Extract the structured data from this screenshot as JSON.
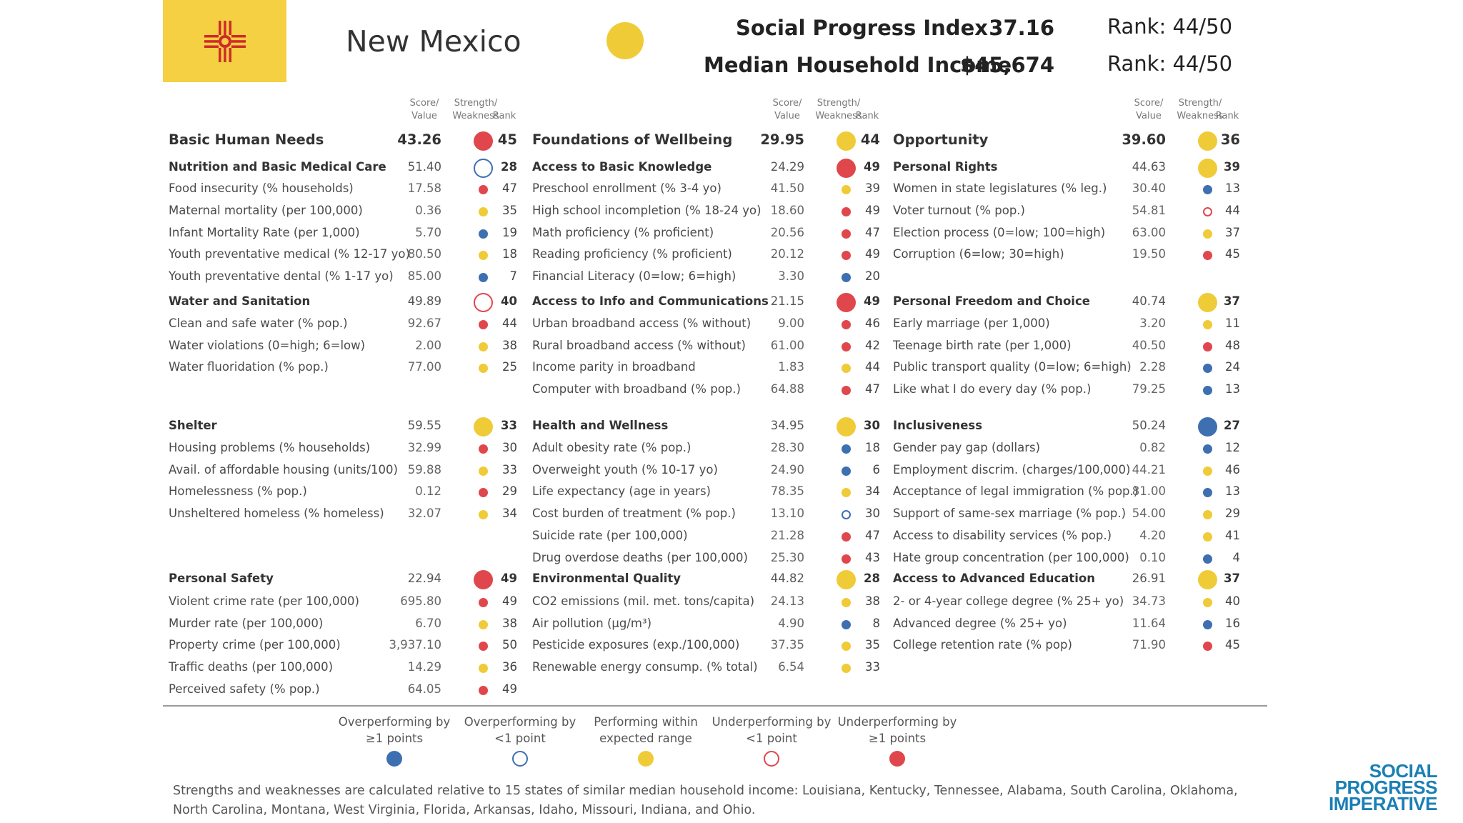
{
  "header": {
    "state": "New Mexico",
    "spi_label": "Social Progress Index",
    "spi_value": "37.16",
    "spi_rank": "Rank: 44/50",
    "income_label": "Median Household Income",
    "income_value": "$45,674",
    "income_rank": "Rank: 44/50"
  },
  "colors": {
    "flag_bg": "#f5d042",
    "flag_symbol": "#cf2a2a",
    "over_strong": "#3e6fb0",
    "over_weak": "#3e6fb0",
    "expected": "#f0cb38",
    "under_weak": "#e0474c",
    "under_strong": "#e0474c"
  },
  "column_headers": {
    "score": "Score/\nValue",
    "strength": "Strength/\nWeakness",
    "rank": "Rank"
  },
  "columns": [
    {
      "rows": [
        {
          "t": "cat",
          "label": "Basic Human Needs",
          "value": "43.26",
          "dot": "under_strong",
          "rank": "45"
        },
        {
          "t": "comp",
          "label": "Nutrition and Basic Medical Care",
          "value": "51.40",
          "dot": "over_weak",
          "rank": "28"
        },
        {
          "t": "ind",
          "label": "Food insecurity (% households)",
          "value": "17.58",
          "dot": "under_strong",
          "rank": "47"
        },
        {
          "t": "ind",
          "label": "Maternal mortality (per 100,000)",
          "value": "0.36",
          "dot": "expected",
          "rank": "35"
        },
        {
          "t": "ind",
          "label": "Infant Mortality Rate (per 1,000)",
          "value": "5.70",
          "dot": "over_strong",
          "rank": "19"
        },
        {
          "t": "ind",
          "label": "Youth preventative medical (% 12-17 yo)",
          "value": "80.50",
          "dot": "expected",
          "rank": "18"
        },
        {
          "t": "ind",
          "label": "Youth preventative dental (% 1-17 yo)",
          "value": "85.00",
          "dot": "over_strong",
          "rank": "7"
        },
        {
          "t": "comp",
          "label": "Water and Sanitation",
          "value": "49.89",
          "dot": "under_weak",
          "rank": "40"
        },
        {
          "t": "ind",
          "label": "Clean and safe water (% pop.)",
          "value": "92.67",
          "dot": "under_strong",
          "rank": "44"
        },
        {
          "t": "ind",
          "label": "Water violations (0=high; 6=low)",
          "value": "2.00",
          "dot": "expected",
          "rank": "38"
        },
        {
          "t": "ind",
          "label": "Water fluoridation (% pop.)",
          "value": "77.00",
          "dot": "expected",
          "rank": "25"
        },
        {
          "t": "comp",
          "label": "Shelter",
          "value": "59.55",
          "dot": "expected",
          "rank": "33"
        },
        {
          "t": "ind",
          "label": "Housing problems (% households)",
          "value": "32.99",
          "dot": "under_strong",
          "rank": "30"
        },
        {
          "t": "ind",
          "label": "Avail. of affordable housing (units/100)",
          "value": "59.88",
          "dot": "expected",
          "rank": "33"
        },
        {
          "t": "ind",
          "label": "Homelessness (% pop.)",
          "value": "0.12",
          "dot": "under_strong",
          "rank": "29"
        },
        {
          "t": "ind",
          "label": "Unsheltered homeless (% homeless)",
          "value": "32.07",
          "dot": "expected",
          "rank": "34"
        },
        {
          "t": "comp",
          "label": "Personal Safety",
          "value": "22.94",
          "dot": "under_strong",
          "rank": "49"
        },
        {
          "t": "ind",
          "label": "Violent crime rate (per 100,000)",
          "value": "695.80",
          "dot": "under_strong",
          "rank": "49"
        },
        {
          "t": "ind",
          "label": "Murder rate (per 100,000)",
          "value": "6.70",
          "dot": "expected",
          "rank": "38"
        },
        {
          "t": "ind",
          "label": "Property crime (per 100,000)",
          "value": "3,937.10",
          "dot": "under_strong",
          "rank": "50"
        },
        {
          "t": "ind",
          "label": "Traffic deaths (per 100,000)",
          "value": "14.29",
          "dot": "expected",
          "rank": "36"
        },
        {
          "t": "ind",
          "label": "Perceived safety (% pop.)",
          "value": "64.05",
          "dot": "under_strong",
          "rank": "49"
        }
      ]
    },
    {
      "rows": [
        {
          "t": "cat",
          "label": "Foundations of Wellbeing",
          "value": "29.95",
          "dot": "expected",
          "rank": "44"
        },
        {
          "t": "comp",
          "label": "Access to Basic Knowledge",
          "value": "24.29",
          "dot": "under_strong",
          "rank": "49"
        },
        {
          "t": "ind",
          "label": "Preschool enrollment (% 3-4 yo)",
          "value": "41.50",
          "dot": "expected",
          "rank": "39"
        },
        {
          "t": "ind",
          "label": "High school incompletion (% 18-24 yo)",
          "value": "18.60",
          "dot": "under_strong",
          "rank": "49"
        },
        {
          "t": "ind",
          "label": "Math proficiency (% proficient)",
          "value": "20.56",
          "dot": "under_strong",
          "rank": "47"
        },
        {
          "t": "ind",
          "label": "Reading proficiency (% proficient)",
          "value": "20.12",
          "dot": "under_strong",
          "rank": "49"
        },
        {
          "t": "ind",
          "label": "Financial Literacy (0=low; 6=high)",
          "value": "3.30",
          "dot": "over_strong",
          "rank": "20"
        },
        {
          "t": "comp",
          "label": "Access to Info and Communications",
          "value": "21.15",
          "dot": "under_strong",
          "rank": "49"
        },
        {
          "t": "ind",
          "label": "Urban broadband access (% without)",
          "value": "9.00",
          "dot": "under_strong",
          "rank": "46"
        },
        {
          "t": "ind",
          "label": "Rural broadband access (% without)",
          "value": "61.00",
          "dot": "under_strong",
          "rank": "42"
        },
        {
          "t": "ind",
          "label": "Income parity in broadband",
          "value": "1.83",
          "dot": "expected",
          "rank": "44"
        },
        {
          "t": "ind",
          "label": "Computer with broadband (% pop.)",
          "value": "64.88",
          "dot": "under_strong",
          "rank": "47"
        },
        {
          "t": "comp",
          "label": "Health and Wellness",
          "value": "34.95",
          "dot": "expected",
          "rank": "30"
        },
        {
          "t": "ind",
          "label": "Adult obesity rate (% pop.)",
          "value": "28.30",
          "dot": "over_strong",
          "rank": "18"
        },
        {
          "t": "ind",
          "label": "Overweight youth (% 10-17 yo)",
          "value": "24.90",
          "dot": "over_strong",
          "rank": "6"
        },
        {
          "t": "ind",
          "label": "Life expectancy (age in years)",
          "value": "78.35",
          "dot": "expected",
          "rank": "34"
        },
        {
          "t": "ind",
          "label": "Cost burden of treatment (% pop.)",
          "value": "13.10",
          "dot": "over_weak",
          "rank": "30"
        },
        {
          "t": "ind",
          "label": "Suicide rate (per 100,000)",
          "value": "21.28",
          "dot": "under_strong",
          "rank": "47"
        },
        {
          "t": "ind",
          "label": "Drug overdose deaths (per 100,000)",
          "value": "25.30",
          "dot": "under_strong",
          "rank": "43"
        },
        {
          "t": "comp",
          "label": "Environmental Quality",
          "value": "44.82",
          "dot": "expected",
          "rank": "28"
        },
        {
          "t": "ind",
          "label": "CO2 emissions (mil. met. tons/capita)",
          "value": "24.13",
          "dot": "expected",
          "rank": "38"
        },
        {
          "t": "ind",
          "label": "Air pollution (µg/m³)",
          "value": "4.90",
          "dot": "over_strong",
          "rank": "8"
        },
        {
          "t": "ind",
          "label": "Pesticide exposures (exp./100,000)",
          "value": "37.35",
          "dot": "expected",
          "rank": "35"
        },
        {
          "t": "ind",
          "label": "Renewable energy consump. (% total)",
          "value": "6.54",
          "dot": "expected",
          "rank": "33"
        }
      ]
    },
    {
      "rows": [
        {
          "t": "cat",
          "label": "Opportunity",
          "value": "39.60",
          "dot": "expected",
          "rank": "36"
        },
        {
          "t": "comp",
          "label": "Personal Rights",
          "value": "44.63",
          "dot": "expected",
          "rank": "39"
        },
        {
          "t": "ind",
          "label": "Women in state legislatures (% leg.)",
          "value": "30.40",
          "dot": "over_strong",
          "rank": "13"
        },
        {
          "t": "ind",
          "label": "Voter turnout (% pop.)",
          "value": "54.81",
          "dot": "under_weak",
          "rank": "44"
        },
        {
          "t": "ind",
          "label": "Election process (0=low; 100=high)",
          "value": "63.00",
          "dot": "expected",
          "rank": "37"
        },
        {
          "t": "ind",
          "label": "Corruption (6=low; 30=high)",
          "value": "19.50",
          "dot": "under_strong",
          "rank": "45"
        },
        {
          "t": "comp",
          "label": "Personal Freedom and Choice",
          "value": "40.74",
          "dot": "expected",
          "rank": "37"
        },
        {
          "t": "ind",
          "label": "Early marriage (per 1,000)",
          "value": "3.20",
          "dot": "expected",
          "rank": "11"
        },
        {
          "t": "ind",
          "label": "Teenage birth rate (per 1,000)",
          "value": "40.50",
          "dot": "under_strong",
          "rank": "48"
        },
        {
          "t": "ind",
          "label": "Public transport quality (0=low; 6=high)",
          "value": "2.28",
          "dot": "over_strong",
          "rank": "24"
        },
        {
          "t": "ind",
          "label": "Like what I do every day (% pop.)",
          "value": "79.25",
          "dot": "over_strong",
          "rank": "13"
        },
        {
          "t": "comp",
          "label": "Inclusiveness",
          "value": "50.24",
          "dot": "over_strong",
          "rank": "27"
        },
        {
          "t": "ind",
          "label": "Gender pay gap (dollars)",
          "value": "0.82",
          "dot": "over_strong",
          "rank": "12"
        },
        {
          "t": "ind",
          "label": "Employment discrim. (charges/100,000)",
          "value": "44.21",
          "dot": "expected",
          "rank": "46"
        },
        {
          "t": "ind",
          "label": "Acceptance of legal immigration (% pop.)",
          "value": "81.00",
          "dot": "over_strong",
          "rank": "13"
        },
        {
          "t": "ind",
          "label": "Support of same-sex marriage (% pop.)",
          "value": "54.00",
          "dot": "expected",
          "rank": "29"
        },
        {
          "t": "ind",
          "label": "Access to disability services (% pop.)",
          "value": "4.20",
          "dot": "expected",
          "rank": "41"
        },
        {
          "t": "ind",
          "label": "Hate group concentration (per 100,000)",
          "value": "0.10",
          "dot": "over_strong",
          "rank": "4"
        },
        {
          "t": "comp",
          "label": "Access to Advanced Education",
          "value": "26.91",
          "dot": "expected",
          "rank": "37"
        },
        {
          "t": "ind",
          "label": "2- or 4-year college degree (% 25+ yo)",
          "value": "34.73",
          "dot": "expected",
          "rank": "40"
        },
        {
          "t": "ind",
          "label": "Advanced degree (% 25+ yo)",
          "value": "11.64",
          "dot": "over_strong",
          "rank": "16"
        },
        {
          "t": "ind",
          "label": "College retention rate (% pop)",
          "value": "71.90",
          "dot": "under_strong",
          "rank": "45"
        }
      ]
    }
  ],
  "legend": [
    {
      "key": "over_strong",
      "label": "Overperforming by\n≥1 points"
    },
    {
      "key": "over_weak",
      "label": "Overperforming by\n<1 point"
    },
    {
      "key": "expected",
      "label": "Performing within\nexpected range"
    },
    {
      "key": "under_weak",
      "label": "Underperforming by\n<1 point"
    },
    {
      "key": "under_strong",
      "label": "Underperforming by\n≥1 points"
    }
  ],
  "footnote": "Strengths and weaknesses are calculated relative to 15 states of similar median household income: Louisiana, Kentucky, Tennessee, Alabama, South Carolina, Oklahoma, North Carolina, Montana, West Virginia, Florida, Arkansas, Idaho, Missouri, Indiana, and Ohio.",
  "logo": {
    "line1": "SOCIAL",
    "line2": "PROGRESS",
    "line3": "IMPERATIVE"
  }
}
